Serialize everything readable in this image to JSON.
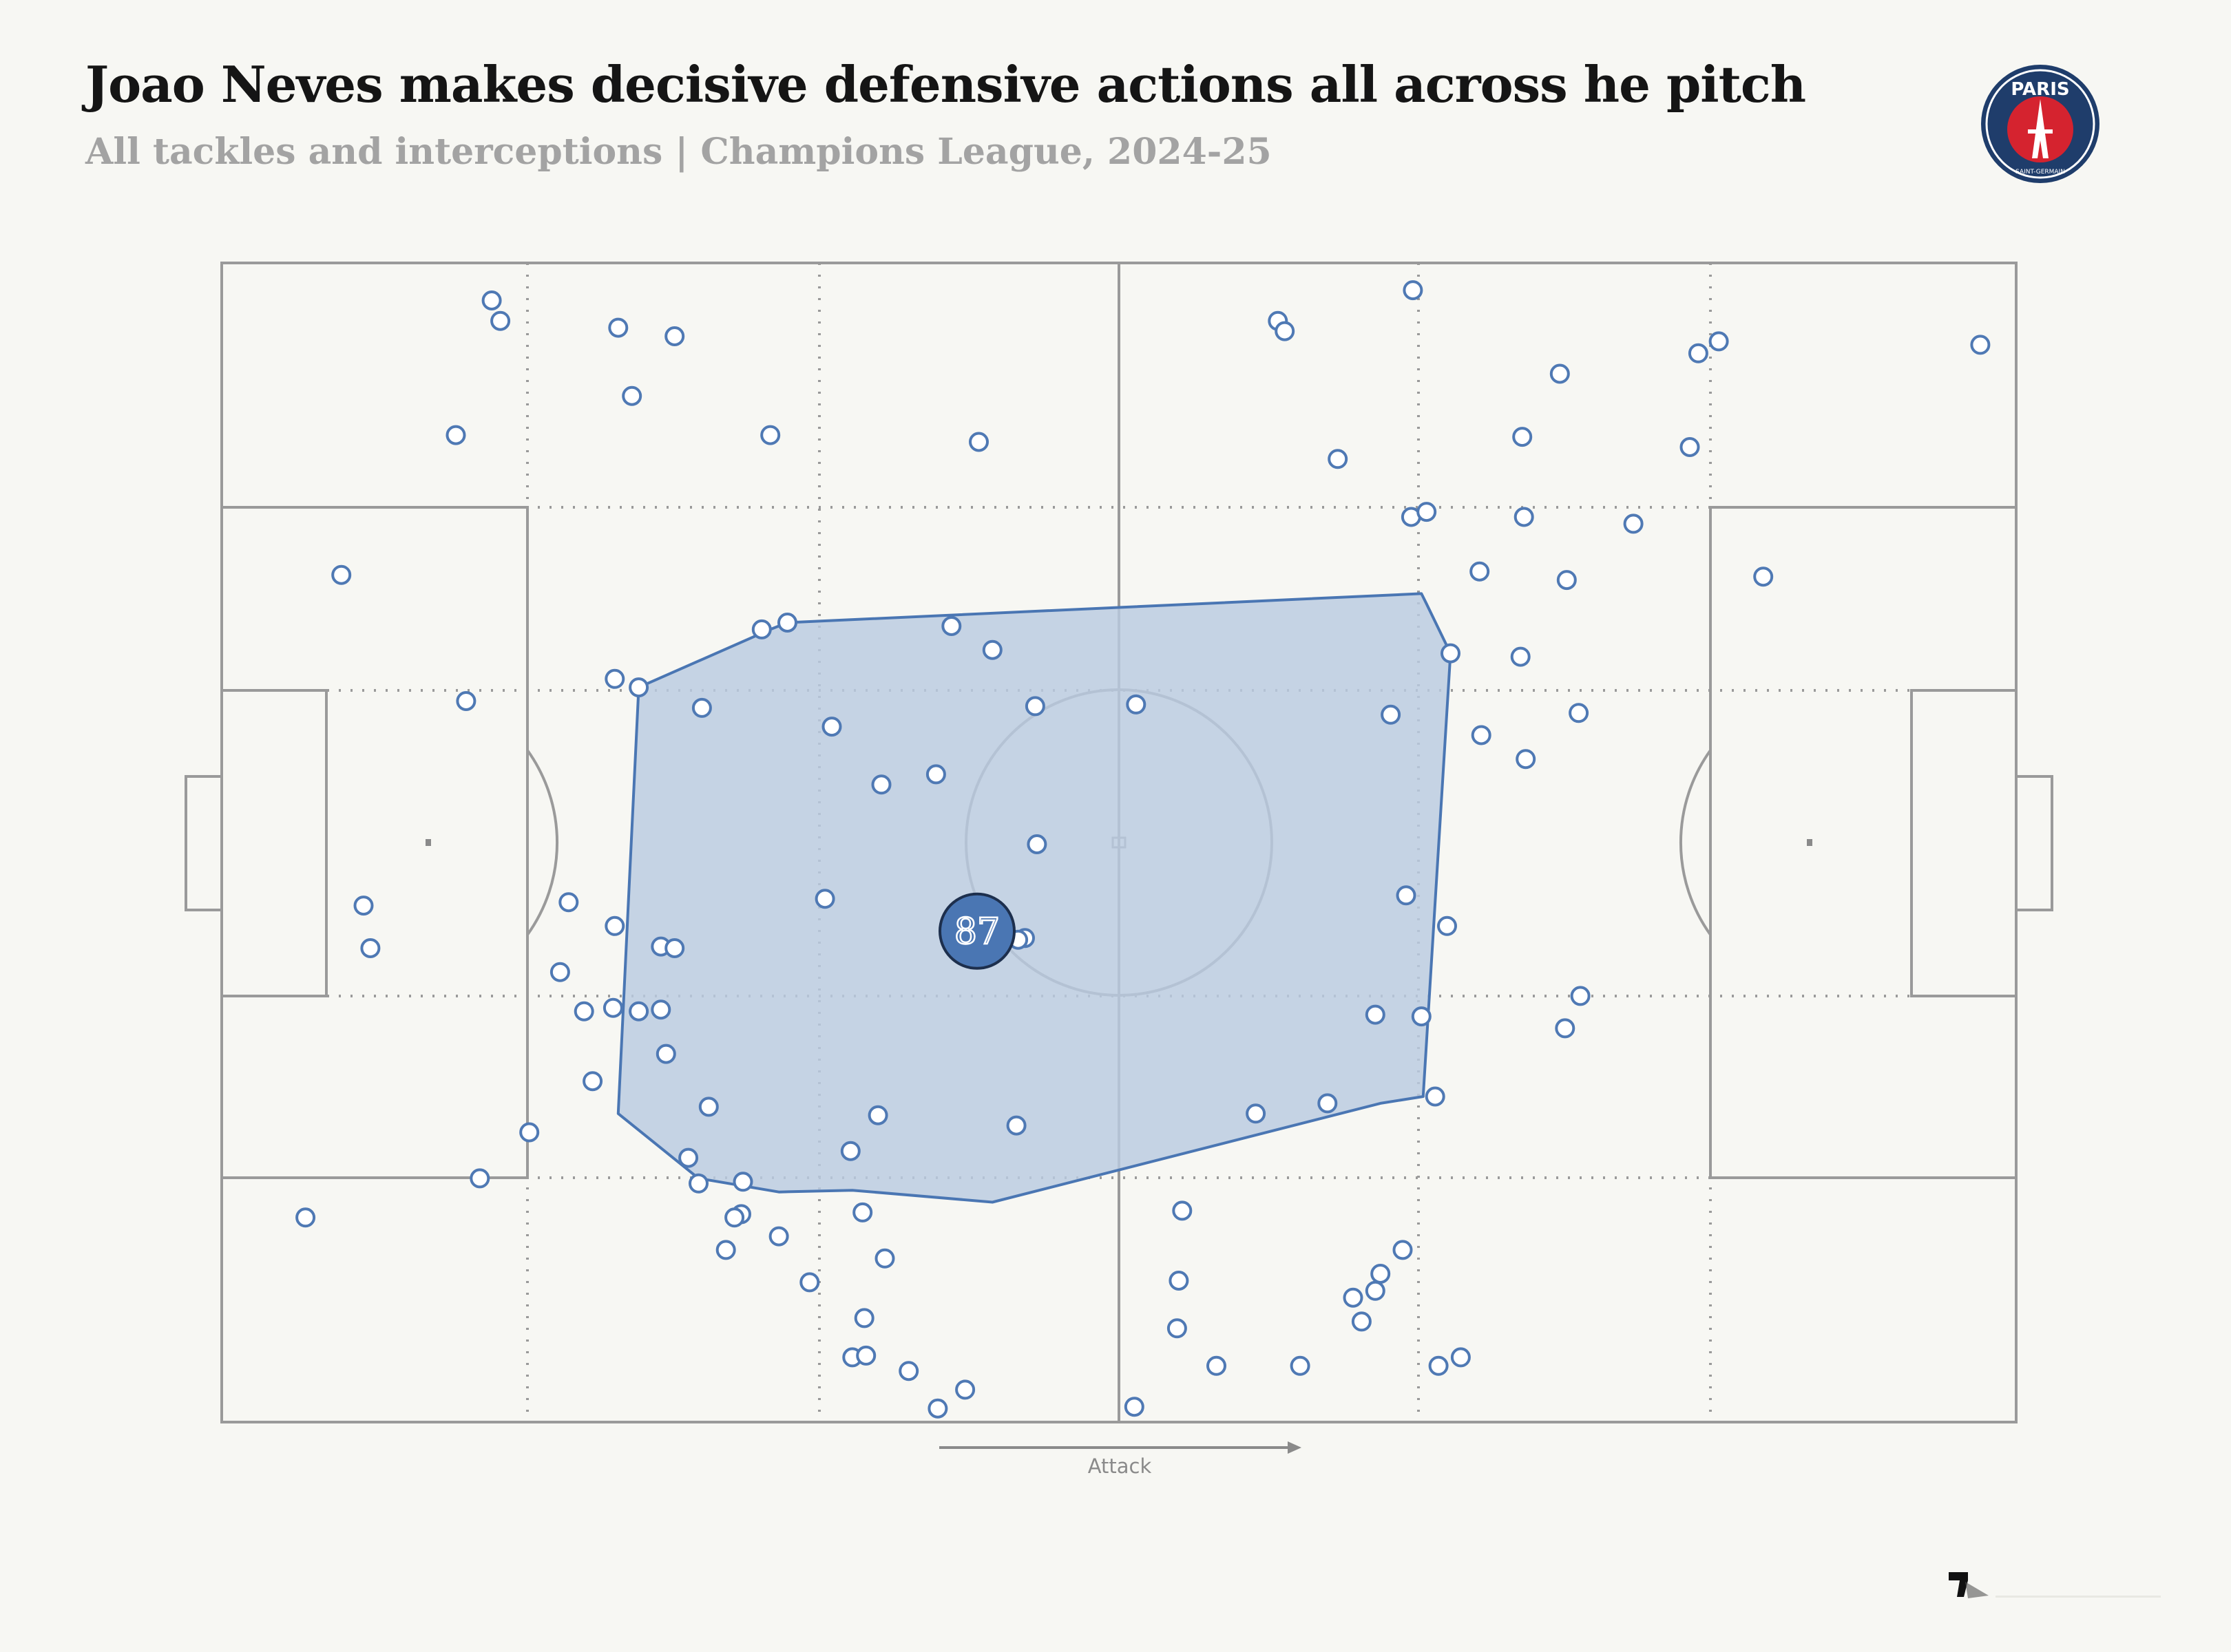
{
  "header": {
    "title": "Joao Neves makes decisive defensive actions all across he pitch",
    "subtitle": "All tackles and interceptions | Champions League, 2024-25"
  },
  "logo": {
    "text": "PARIS",
    "subtext": "SAINT-GERMAIN",
    "icon": "psg-crest-icon"
  },
  "colors": {
    "background": "#f7f7f3",
    "pitch_lines": "#9a9a9a",
    "marker_stroke": "#4f79b4",
    "marker_fill": "#ffffff",
    "hull_fill": "#b9cbe0",
    "hull_stroke": "#4a76b3",
    "badge_fill": "#4a76b3",
    "logo_navy": "#1f3d6b",
    "logo_red": "#d5232f"
  },
  "chart_data": {
    "type": "scatter",
    "pitch": {
      "length": 105,
      "width": 68,
      "attack_direction": "left-to-right",
      "zones": "juego de posicion"
    },
    "x_axis_label": "Attack",
    "badge_value": "87",
    "points": [
      {
        "x": 15.8,
        "y": 65.8
      },
      {
        "x": 16.3,
        "y": 64.6
      },
      {
        "x": 23.2,
        "y": 64.2
      },
      {
        "x": 26.5,
        "y": 63.7
      },
      {
        "x": 24.0,
        "y": 60.2
      },
      {
        "x": 13.7,
        "y": 57.9
      },
      {
        "x": 32.1,
        "y": 57.9
      },
      {
        "x": 44.3,
        "y": 57.5
      },
      {
        "x": 7.0,
        "y": 49.7
      },
      {
        "x": 31.6,
        "y": 46.5
      },
      {
        "x": 33.1,
        "y": 46.9
      },
      {
        "x": 42.7,
        "y": 46.7
      },
      {
        "x": 45.1,
        "y": 45.3
      },
      {
        "x": 23.0,
        "y": 43.6
      },
      {
        "x": 24.4,
        "y": 43.1
      },
      {
        "x": 14.3,
        "y": 42.3
      },
      {
        "x": 28.1,
        "y": 41.9
      },
      {
        "x": 35.7,
        "y": 40.8
      },
      {
        "x": 47.6,
        "y": 42.0
      },
      {
        "x": 53.5,
        "y": 42.1
      },
      {
        "x": 38.6,
        "y": 37.4
      },
      {
        "x": 41.8,
        "y": 38.0
      },
      {
        "x": 47.7,
        "y": 33.9
      },
      {
        "x": 8.3,
        "y": 30.3
      },
      {
        "x": 20.3,
        "y": 30.5
      },
      {
        "x": 35.3,
        "y": 30.7
      },
      {
        "x": 8.7,
        "y": 27.8
      },
      {
        "x": 23.0,
        "y": 29.1
      },
      {
        "x": 25.7,
        "y": 27.9
      },
      {
        "x": 26.5,
        "y": 27.8
      },
      {
        "x": 19.8,
        "y": 26.4
      },
      {
        "x": 47.0,
        "y": 28.4
      },
      {
        "x": 46.6,
        "y": 28.3
      },
      {
        "x": 21.2,
        "y": 24.1
      },
      {
        "x": 24.4,
        "y": 24.1
      },
      {
        "x": 25.7,
        "y": 24.2
      },
      {
        "x": 22.9,
        "y": 24.3
      },
      {
        "x": 26.0,
        "y": 21.6
      },
      {
        "x": 21.7,
        "y": 20.0
      },
      {
        "x": 28.5,
        "y": 18.5
      },
      {
        "x": 38.4,
        "y": 18.0
      },
      {
        "x": 46.5,
        "y": 17.4
      },
      {
        "x": 18.0,
        "y": 17.0
      },
      {
        "x": 27.3,
        "y": 15.5
      },
      {
        "x": 36.8,
        "y": 15.9
      },
      {
        "x": 15.1,
        "y": 14.3
      },
      {
        "x": 27.9,
        "y": 14.0
      },
      {
        "x": 30.5,
        "y": 14.1
      },
      {
        "x": 30.4,
        "y": 12.2
      },
      {
        "x": 4.9,
        "y": 12.0
      },
      {
        "x": 32.6,
        "y": 10.9
      },
      {
        "x": 29.5,
        "y": 10.1
      },
      {
        "x": 38.8,
        "y": 9.6
      },
      {
        "x": 37.5,
        "y": 12.3
      },
      {
        "x": 30.0,
        "y": 12.0
      },
      {
        "x": 34.4,
        "y": 8.2
      },
      {
        "x": 37.6,
        "y": 6.1
      },
      {
        "x": 36.9,
        "y": 3.8
      },
      {
        "x": 37.7,
        "y": 3.9
      },
      {
        "x": 40.2,
        "y": 3.0
      },
      {
        "x": 43.5,
        "y": 1.9
      },
      {
        "x": 41.9,
        "y": 0.8
      },
      {
        "x": 53.4,
        "y": 0.9
      },
      {
        "x": 58.2,
        "y": 3.3
      },
      {
        "x": 63.1,
        "y": 3.3
      },
      {
        "x": 56.0,
        "y": 8.3
      },
      {
        "x": 55.9,
        "y": 5.5
      },
      {
        "x": 56.2,
        "y": 12.4
      },
      {
        "x": 69.1,
        "y": 10.1
      },
      {
        "x": 67.5,
        "y": 7.7
      },
      {
        "x": 66.7,
        "y": 5.9
      },
      {
        "x": 66.2,
        "y": 7.3
      },
      {
        "x": 67.8,
        "y": 8.7
      },
      {
        "x": 72.5,
        "y": 3.8
      },
      {
        "x": 71.2,
        "y": 3.3
      },
      {
        "x": 64.7,
        "y": 18.7
      },
      {
        "x": 60.5,
        "y": 18.1
      },
      {
        "x": 71.0,
        "y": 19.1
      },
      {
        "x": 70.2,
        "y": 23.8
      },
      {
        "x": 79.5,
        "y": 25.0
      },
      {
        "x": 78.6,
        "y": 23.1
      },
      {
        "x": 67.5,
        "y": 23.9
      },
      {
        "x": 71.7,
        "y": 29.1
      },
      {
        "x": 69.3,
        "y": 30.9
      },
      {
        "x": 76.3,
        "y": 38.9
      },
      {
        "x": 73.7,
        "y": 40.3
      },
      {
        "x": 76.0,
        "y": 44.9
      },
      {
        "x": 79.4,
        "y": 41.6
      },
      {
        "x": 78.7,
        "y": 49.4
      },
      {
        "x": 73.6,
        "y": 49.9
      },
      {
        "x": 68.4,
        "y": 41.5
      },
      {
        "x": 69.6,
        "y": 53.1
      },
      {
        "x": 70.5,
        "y": 53.4
      },
      {
        "x": 71.9,
        "y": 45.1
      },
      {
        "x": 82.6,
        "y": 52.7
      },
      {
        "x": 78.3,
        "y": 61.5
      },
      {
        "x": 76.1,
        "y": 57.8
      },
      {
        "x": 76.2,
        "y": 53.1
      },
      {
        "x": 86.4,
        "y": 62.7
      },
      {
        "x": 87.6,
        "y": 63.4
      },
      {
        "x": 102.9,
        "y": 63.2
      },
      {
        "x": 90.2,
        "y": 49.6
      },
      {
        "x": 85.9,
        "y": 57.2
      },
      {
        "x": 69.7,
        "y": 66.4
      },
      {
        "x": 61.8,
        "y": 64.6
      },
      {
        "x": 62.2,
        "y": 64.0
      },
      {
        "x": 65.3,
        "y": 56.5
      }
    ],
    "hull": [
      {
        "x": 24.4,
        "y": 43.1
      },
      {
        "x": 32.1,
        "y": 46.5
      },
      {
        "x": 33.1,
        "y": 46.9
      },
      {
        "x": 70.2,
        "y": 48.6
      },
      {
        "x": 70.5,
        "y": 48.0
      },
      {
        "x": 71.9,
        "y": 45.1
      },
      {
        "x": 70.3,
        "y": 19.1
      },
      {
        "x": 67.8,
        "y": 18.7
      },
      {
        "x": 45.1,
        "y": 12.9
      },
      {
        "x": 36.9,
        "y": 13.6
      },
      {
        "x": 32.6,
        "y": 13.5
      },
      {
        "x": 27.9,
        "y": 14.3
      },
      {
        "x": 23.2,
        "y": 18.1
      }
    ],
    "badge_position": {
      "x": 44.2,
      "y": 28.8
    }
  }
}
